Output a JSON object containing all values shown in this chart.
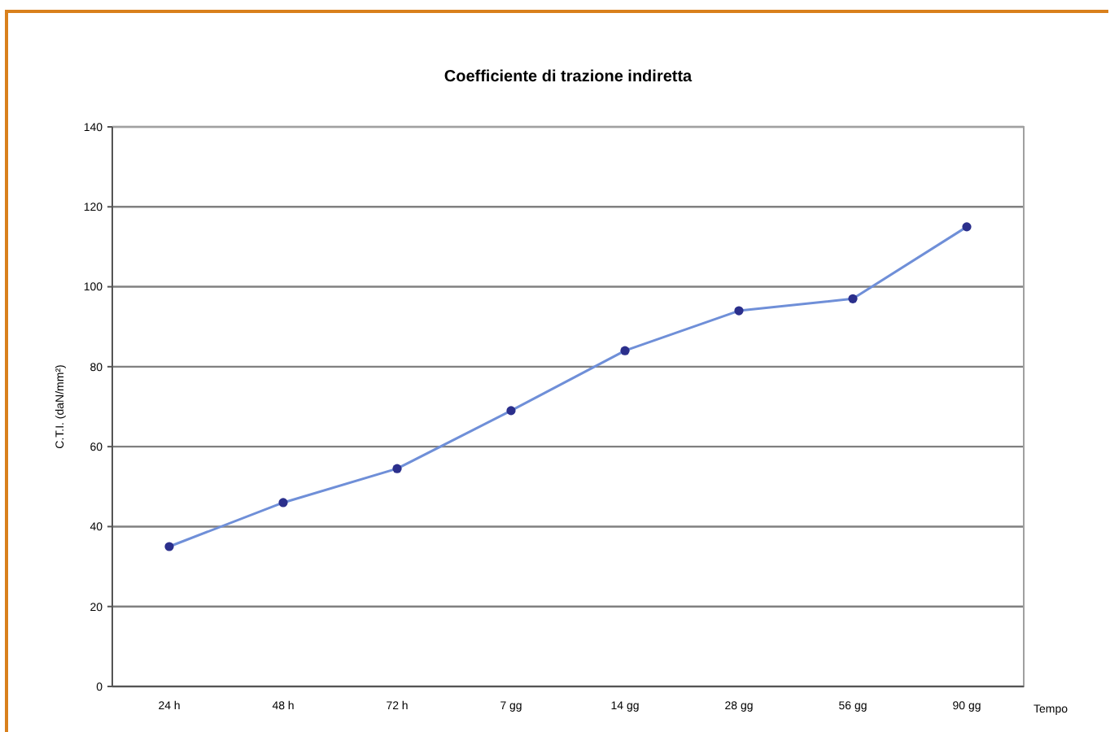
{
  "chart_data": {
    "type": "line",
    "title": "Coefficiente di trazione indiretta",
    "xlabel": "Tempo",
    "ylabel": "C.T.I. (daN/mm²)",
    "categories": [
      "24 h",
      "48 h",
      "72 h",
      "7 gg",
      "14 gg",
      "28 gg",
      "56 gg",
      "90 gg"
    ],
    "series": [
      {
        "color": "#6f8fd8",
        "values": [
          35,
          46,
          54.5,
          69,
          84,
          94,
          97,
          115
        ]
      }
    ],
    "ylim": [
      0,
      140
    ],
    "yticks": [
      0,
      20,
      40,
      60,
      80,
      100,
      120,
      140
    ],
    "grid": "y",
    "marker": "circle",
    "line_style": "solid"
  }
}
